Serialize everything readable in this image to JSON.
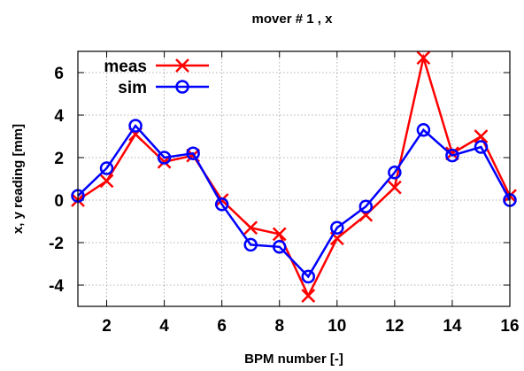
{
  "chart_data": {
    "type": "line",
    "title": "mover # 1 , x",
    "xlabel": "BPM number [-]",
    "ylabel": "x, y reading [mm]",
    "xlim": [
      1,
      16
    ],
    "ylim": [
      -5,
      7
    ],
    "xticks": [
      2,
      4,
      6,
      8,
      10,
      12,
      14,
      16
    ],
    "yticks": [
      -4,
      -2,
      0,
      2,
      4,
      6
    ],
    "grid": true,
    "legend_position": "top-left",
    "x": [
      1,
      2,
      3,
      4,
      5,
      6,
      7,
      8,
      9,
      10,
      11,
      12,
      13,
      14,
      15,
      16
    ],
    "series": [
      {
        "name": "meas",
        "color": "#ff0000",
        "marker": "x",
        "values": [
          0.0,
          0.9,
          3.1,
          1.8,
          2.1,
          0.0,
          -1.3,
          -1.6,
          -4.5,
          -1.8,
          -0.7,
          0.6,
          6.7,
          2.2,
          3.0,
          0.2
        ]
      },
      {
        "name": "sim",
        "color": "#0000ff",
        "marker": "circle",
        "values": [
          0.2,
          1.5,
          3.5,
          2.0,
          2.2,
          -0.2,
          -2.1,
          -2.2,
          -3.6,
          -1.3,
          -0.3,
          1.3,
          3.3,
          2.1,
          2.5,
          0.0
        ]
      }
    ]
  }
}
